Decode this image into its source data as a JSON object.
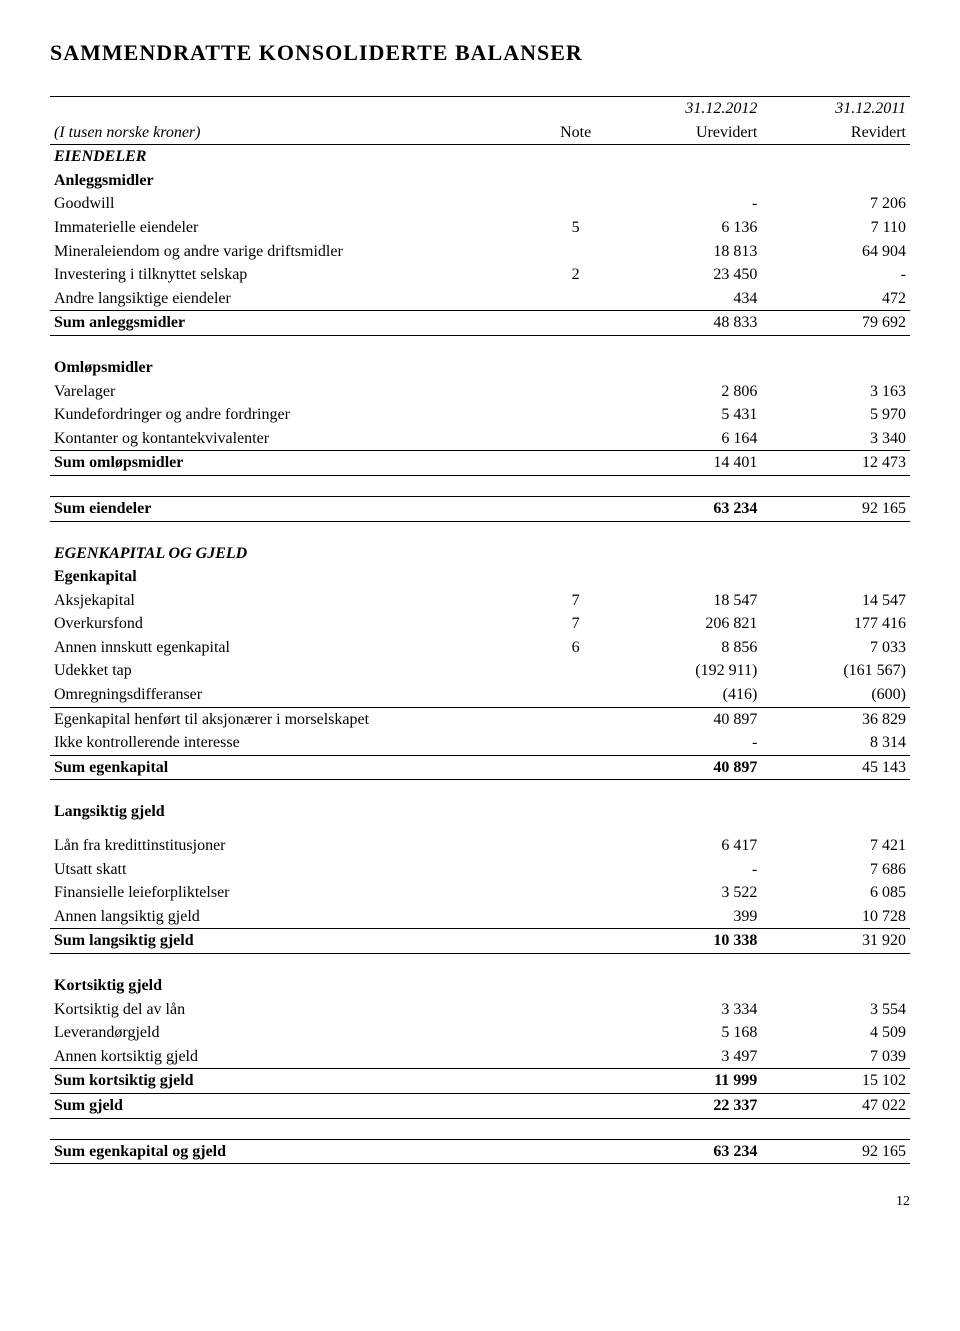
{
  "title": "SAMMENDRATTE KONSOLIDERTE BALANSER",
  "header": {
    "col_label": "(I tusen norske kroner)",
    "col_note": "Note",
    "date_cur": "31.12.2012",
    "date_prev": "31.12.2011",
    "col_cur": "Urevidert",
    "col_prev": "Revidert"
  },
  "sections": {
    "eiendeler": "EIENDELER",
    "anleggsmidler": "Anleggsmidler",
    "goodwill": {
      "label": "Goodwill",
      "cur": "-",
      "prev": "7 206"
    },
    "immaterielle": {
      "label": "Immaterielle eiendeler",
      "note": "5",
      "cur": "6 136",
      "prev": "7 110"
    },
    "mineraleiendom": {
      "label": "Mineraleiendom og andre varige driftsmidler",
      "cur": "18 813",
      "prev": "64 904"
    },
    "investering": {
      "label": "Investering i tilknyttet selskap",
      "note": "2",
      "cur": "23 450",
      "prev": "-"
    },
    "andre_lang": {
      "label": "Andre langsiktige eiendeler",
      "cur": "434",
      "prev": "472"
    },
    "sum_anlegg": {
      "label": "Sum anleggsmidler",
      "cur": "48 833",
      "prev": "79 692"
    },
    "omlopsmidler": "Omløpsmidler",
    "varelager": {
      "label": "Varelager",
      "cur": "2 806",
      "prev": "3 163"
    },
    "kundefordringer": {
      "label": "Kundefordringer og andre fordringer",
      "cur": "5 431",
      "prev": "5 970"
    },
    "kontanter": {
      "label": "Kontanter og kontantekvivalenter",
      "cur": "6 164",
      "prev": "3 340"
    },
    "sum_omlop": {
      "label": "Sum omløpsmidler",
      "cur": "14 401",
      "prev": "12 473"
    },
    "sum_eiendeler": {
      "label": "Sum eiendeler",
      "cur": "63 234",
      "prev": "92 165"
    },
    "egenkap_gjeld": "EGENKAPITAL OG GJELD",
    "egenkapital": "Egenkapital",
    "aksjekap": {
      "label": "Aksjekapital",
      "note": "7",
      "cur": "18 547",
      "prev": "14 547"
    },
    "overkurs": {
      "label": "Overkursfond",
      "note": "7",
      "cur": "206 821",
      "prev": "177 416"
    },
    "annen_innskutt": {
      "label": "Annen innskutt egenkapital",
      "note": "6",
      "cur": "8 856",
      "prev": "7 033"
    },
    "udekket": {
      "label": "Udekket tap",
      "cur": "(192 911)",
      "prev": "(161 567)"
    },
    "omregning": {
      "label": "Omregningsdifferanser",
      "cur": "(416)",
      "prev": "(600)"
    },
    "egenkap_mor": {
      "label": "Egenkapital henført til aksjonærer i morselskapet",
      "cur": "40 897",
      "prev": "36 829"
    },
    "ikke_kontroll": {
      "label": "Ikke kontrollerende interesse",
      "cur": "-",
      "prev": "8 314"
    },
    "sum_egenkap": {
      "label": "Sum egenkapital",
      "cur": "40 897",
      "prev": "45 143"
    },
    "lang_gjeld": "Langsiktig gjeld",
    "laan_kreditt": {
      "label": "Lån fra kredittinstitusjoner",
      "cur": "6 417",
      "prev": "7 421"
    },
    "utsatt_skatt": {
      "label": "Utsatt skatt",
      "cur": "-",
      "prev": "7 686"
    },
    "fin_leie": {
      "label": "Finansielle leieforpliktelser",
      "cur": "3 522",
      "prev": "6 085"
    },
    "annen_lang_gjeld": {
      "label": "Annen langsiktig gjeld",
      "cur": "399",
      "prev": "10 728"
    },
    "sum_lang_gjeld": {
      "label": "Sum langsiktig gjeld",
      "cur": "10 338",
      "prev": "31 920"
    },
    "kort_gjeld": "Kortsiktig gjeld",
    "kort_del_laan": {
      "label": "Kortsiktig del av lån",
      "cur": "3 334",
      "prev": "3 554"
    },
    "leverandor": {
      "label": "Leverandørgjeld",
      "cur": "5 168",
      "prev": "4 509"
    },
    "annen_kort": {
      "label": "Annen kortsiktig gjeld",
      "cur": "3 497",
      "prev": "7 039"
    },
    "sum_kort": {
      "label": "Sum kortsiktig gjeld",
      "cur": "11 999",
      "prev": "15 102"
    },
    "sum_gjeld": {
      "label": "Sum gjeld",
      "cur": "22 337",
      "prev": "47 022"
    },
    "sum_ek_gjeld": {
      "label": "Sum egenkapital og gjeld",
      "cur": "63 234",
      "prev": "92 165"
    }
  },
  "page_number": "12",
  "style": {
    "background": "#ffffff",
    "text_color": "#000000",
    "title_fontsize": 22,
    "body_fontsize": 16,
    "font_family": "Times New Roman"
  }
}
